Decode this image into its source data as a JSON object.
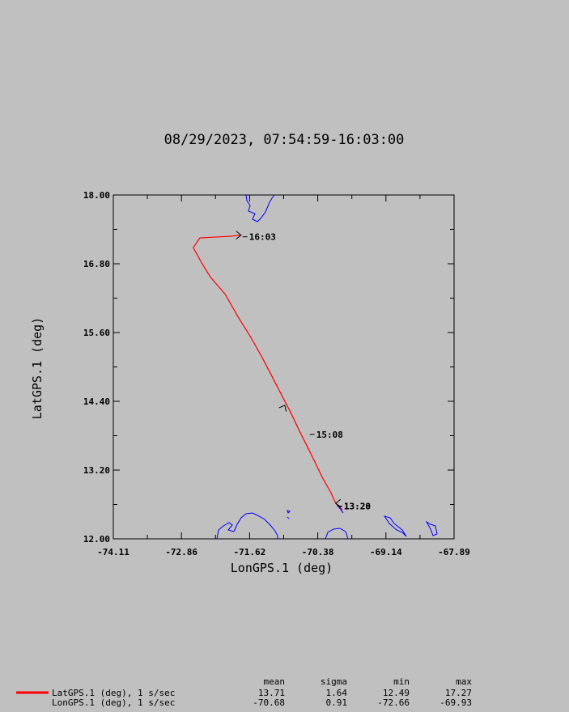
{
  "chart_data": {
    "type": "line",
    "title": "08/29/2023, 07:54:59-16:03:00",
    "xlabel": "LonGPS.1 (deg)",
    "ylabel": "LatGPS.1 (deg)",
    "xlim": [
      -74.11,
      -67.89
    ],
    "ylim": [
      12.0,
      18.0
    ],
    "x_ticks": [
      "-74.11",
      "-72.86",
      "-71.62",
      "-70.38",
      "-69.14",
      "-67.89"
    ],
    "y_ticks": [
      "12.00",
      "13.20",
      "14.40",
      "15.60",
      "16.80",
      "18.00"
    ],
    "grid": false,
    "series": [
      {
        "name": "LatGPS.1 (deg), 1 s/sec",
        "color": "#ff0000",
        "points": [
          [
            -69.93,
            12.5
          ],
          [
            -69.98,
            12.57
          ],
          [
            -70.05,
            12.62
          ],
          [
            -70.14,
            12.81
          ],
          [
            -70.3,
            13.08
          ],
          [
            -70.5,
            13.48
          ],
          [
            -70.7,
            13.86
          ],
          [
            -70.88,
            14.22
          ],
          [
            -71.14,
            14.7
          ],
          [
            -71.39,
            15.16
          ],
          [
            -71.62,
            15.55
          ],
          [
            -71.83,
            15.87
          ],
          [
            -72.07,
            16.27
          ],
          [
            -72.34,
            16.57
          ],
          [
            -72.5,
            16.82
          ],
          [
            -72.65,
            17.08
          ],
          [
            -72.53,
            17.25
          ],
          [
            -71.97,
            17.28
          ],
          [
            -71.78,
            17.3
          ]
        ]
      },
      {
        "name": "LonGPS.1 (deg), 1 s/sec",
        "color": "#000000",
        "points": []
      }
    ],
    "annotations": [
      {
        "text": "16:03",
        "x": -71.78,
        "y": 17.27
      },
      {
        "text": "15:08",
        "x": -70.79,
        "y": 14.19
      },
      {
        "text": "13:28",
        "x": -70.02,
        "y": 12.57
      },
      {
        "text": "13:20",
        "x": -70.02,
        "y": 12.57
      }
    ],
    "stats_table": {
      "headers": [
        "mean",
        "sigma",
        "min",
        "max"
      ],
      "rows": [
        {
          "label": "LatGPS.1 (deg), 1 s/sec",
          "line_color": "#ff0000",
          "values": [
            "13.71",
            "1.64",
            "12.49",
            "17.27"
          ]
        },
        {
          "label": "LonGPS.1 (deg), 1 s/sec",
          "line_color": "",
          "values": [
            "-70.68",
            "0.91",
            "-72.66",
            "-69.93"
          ]
        }
      ]
    }
  },
  "colors": {
    "background": "#c0c0c0",
    "track": "#ff0000",
    "coastline": "#0000ff",
    "axes": "#000000"
  }
}
